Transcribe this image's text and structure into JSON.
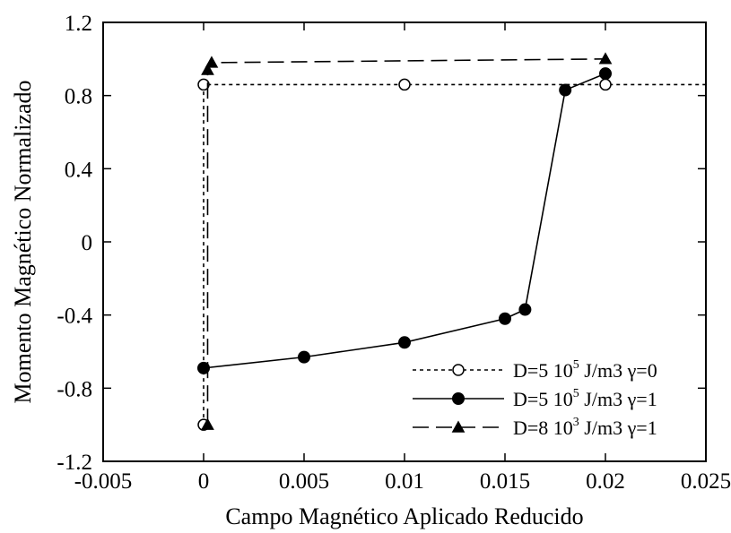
{
  "chart_data": {
    "type": "line",
    "xlabel": "Campo Magnético Aplicado Reducido",
    "ylabel": "Momento Magnético Normalizado",
    "xlim": [
      -0.005,
      0.025
    ],
    "ylim": [
      -1.2,
      1.2
    ],
    "xticks": [
      -0.005,
      0,
      0.005,
      0.01,
      0.015,
      0.02,
      0.025
    ],
    "xtick_labels": [
      "-0.005",
      "0",
      "0.005",
      "0.01",
      "0.015",
      "0.02",
      "0.025"
    ],
    "yticks": [
      -1.2,
      -0.8,
      -0.4,
      0,
      0.4,
      0.8,
      1.2
    ],
    "ytick_labels": [
      "-1.2",
      "-0.8",
      "-0.4",
      "0",
      "0.4",
      "0.8",
      "1.2"
    ],
    "grid": false,
    "legend_position": "bottom-right",
    "series": [
      {
        "name": "D=5 10^5 J/m3 γ=0",
        "legend": {
          "pre": "D=5 10",
          "sup": "5",
          "post": " J/m3 γ=0"
        },
        "line_style": "dotted",
        "marker": "open-circle",
        "x": [
          0,
          0,
          0.01,
          0.02,
          0.025
        ],
        "y": [
          -1.0,
          0.86,
          0.86,
          0.86,
          0.86
        ],
        "marker_x": [
          0,
          0,
          0.01,
          0.02
        ],
        "marker_y": [
          -1.0,
          0.86,
          0.86,
          0.86
        ]
      },
      {
        "name": "D=5 10^5 J/m3 γ=1",
        "legend": {
          "pre": "D=5 10",
          "sup": "5",
          "post": " J/m3 γ=1"
        },
        "line_style": "solid",
        "marker": "filled-circle",
        "x": [
          0,
          0.005,
          0.01,
          0.015,
          0.016,
          0.018,
          0.02
        ],
        "y": [
          -0.69,
          -0.63,
          -0.55,
          -0.42,
          -0.37,
          0.83,
          0.92
        ],
        "marker_x": [
          0,
          0.005,
          0.01,
          0.015,
          0.016,
          0.018,
          0.02
        ],
        "marker_y": [
          -0.69,
          -0.63,
          -0.55,
          -0.42,
          -0.37,
          0.83,
          0.92
        ]
      },
      {
        "name": "D=8 10^3 J/m3 γ=1",
        "legend": {
          "pre": "D=8 10",
          "sup": "3",
          "post": " J/m3 γ=1"
        },
        "line_style": "dashed",
        "marker": "filled-triangle",
        "x": [
          0.0002,
          0.0002,
          0.0004,
          0.02
        ],
        "y": [
          -1.0,
          0.94,
          0.98,
          1.0
        ],
        "marker_x": [
          0.0002,
          0.0002,
          0.0004,
          0.02
        ],
        "marker_y": [
          -1.0,
          0.94,
          0.98,
          1.0
        ]
      }
    ]
  }
}
